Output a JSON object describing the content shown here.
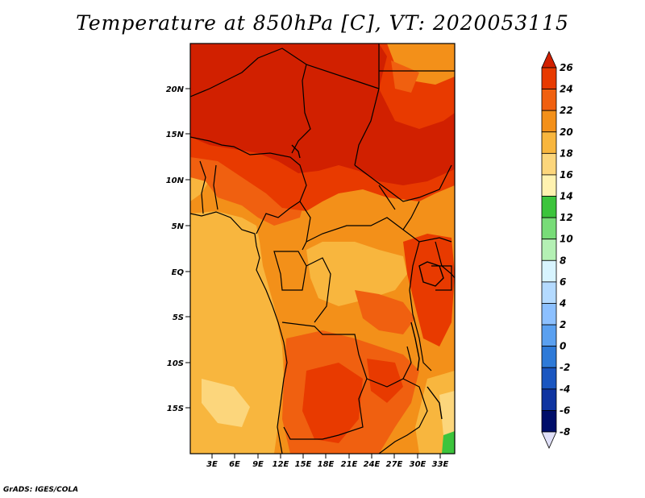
{
  "title": "Temperature at 850hPa [C], VT: 2020053115",
  "credit": "GrADS: IGES/COLA",
  "map": {
    "lat_labels": [
      "20N",
      "15N",
      "10N",
      "5N",
      "EQ",
      "5S",
      "10S",
      "15S"
    ],
    "lon_labels": [
      "3E",
      "6E",
      "9E",
      "12E",
      "15E",
      "18E",
      "21E",
      "24E",
      "27E",
      "30E",
      "33E"
    ]
  },
  "colorbar": {
    "labels": [
      "26",
      "24",
      "22",
      "20",
      "18",
      "16",
      "14",
      "12",
      "10",
      "8",
      "6",
      "4",
      "2",
      "0",
      "-2",
      "-4",
      "-6",
      "-8"
    ],
    "colors": [
      "#d12000",
      "#e83a00",
      "#f06010",
      "#f39019",
      "#f8b63e",
      "#fcd67c",
      "#fff2b0",
      "#3cc43c",
      "#78dc78",
      "#b4f0b4",
      "#d8f4ff",
      "#b4daff",
      "#8cc0ff",
      "#5aa0f0",
      "#2e7ad8",
      "#1a56c0",
      "#0f34a0",
      "#000e6a",
      "#e0e0f8"
    ]
  }
}
